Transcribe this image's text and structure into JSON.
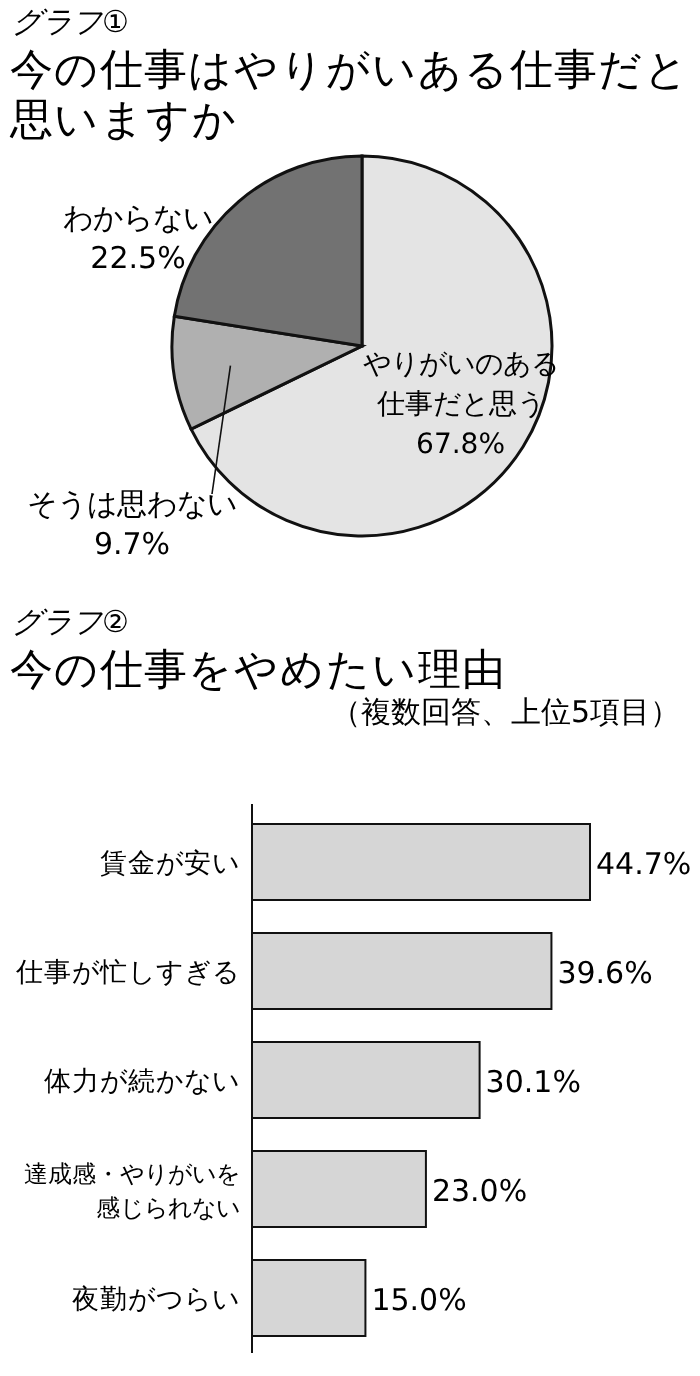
{
  "chart_data": [
    {
      "type": "pie",
      "annotations": [
        "グラフ①"
      ],
      "title": "今の仕事はやりがいある仕事だと思いますか",
      "categories": [
        "やりがいのある仕事だと思う",
        "そうは思わない",
        "わからない"
      ],
      "values": [
        67.8,
        9.7,
        22.5
      ],
      "colors": [
        "#e4e4e4",
        "#b0b0b0",
        "#727272"
      ],
      "value_labels": [
        "67.8%",
        "9.7%",
        "22.5%"
      ]
    },
    {
      "type": "bar",
      "annotations": [
        "グラフ②"
      ],
      "title": "今の仕事をやめたい理由",
      "subtitle": "（複数回答、上位5項目）",
      "orientation": "horizontal",
      "categories": [
        "賃金が安い",
        "仕事が忙しすぎる",
        "体力が続かない",
        "達成感・やりがいを感じられない",
        "夜勤がつらい"
      ],
      "values": [
        44.7,
        39.6,
        30.1,
        23.0,
        15.0
      ],
      "color": "#d6d6d6",
      "value_labels": [
        "44.7%",
        "39.6%",
        "30.1%",
        "23.0%",
        "15.0%"
      ]
    }
  ]
}
